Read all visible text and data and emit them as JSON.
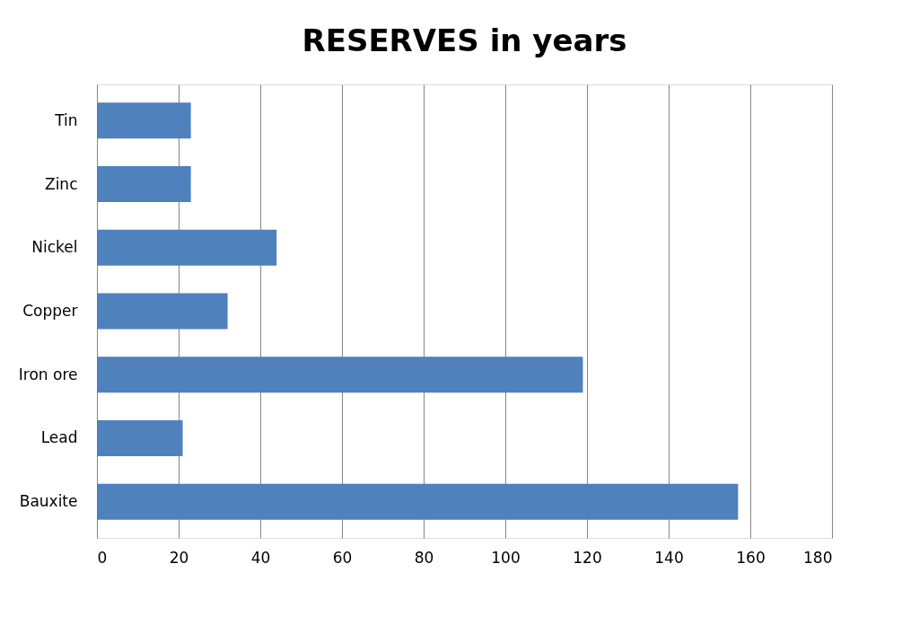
{
  "chart_data": {
    "type": "bar",
    "orientation": "horizontal",
    "title": "RESERVES in years",
    "categories": [
      "Tin",
      "Zinc",
      "Nickel",
      "Copper",
      "Iron ore",
      "Lead",
      "Bauxite"
    ],
    "values": [
      23,
      23,
      44,
      32,
      119,
      21,
      157
    ],
    "color": "#4f81bd",
    "xlim": [
      0,
      180
    ],
    "xticks": [
      0,
      20,
      40,
      60,
      80,
      100,
      120,
      140,
      160,
      180
    ],
    "grid": "x"
  }
}
